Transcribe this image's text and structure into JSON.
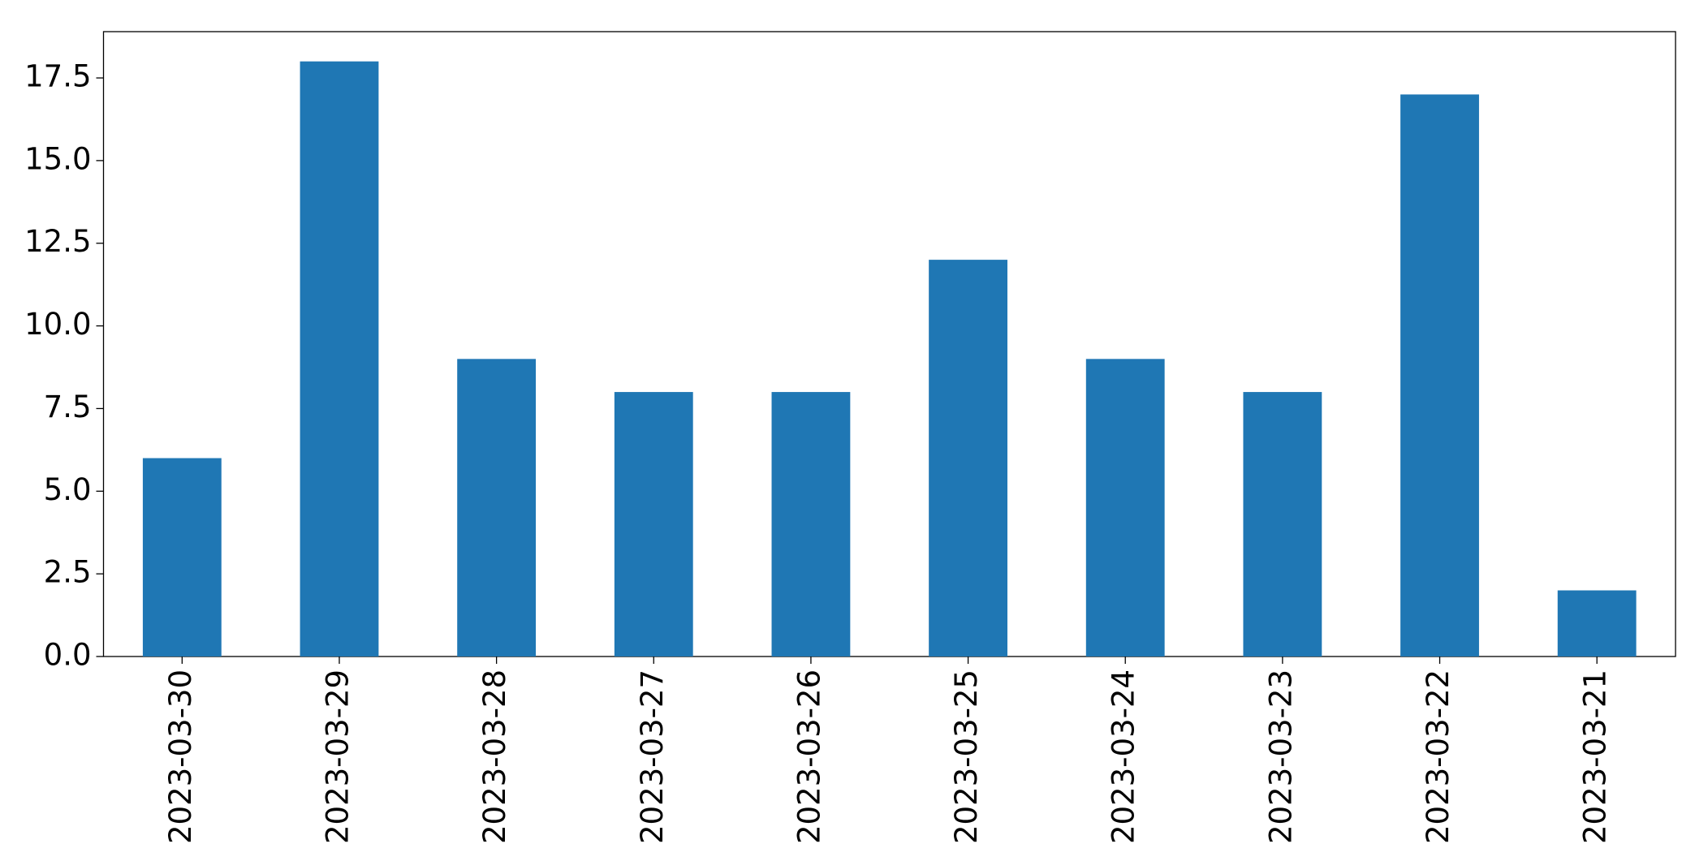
{
  "chart_data": {
    "type": "bar",
    "categories": [
      "2023-03-30",
      "2023-03-29",
      "2023-03-28",
      "2023-03-27",
      "2023-03-26",
      "2023-03-25",
      "2023-03-24",
      "2023-03-23",
      "2023-03-22",
      "2023-03-21"
    ],
    "values": [
      6,
      18,
      9,
      8,
      8,
      12,
      9,
      8,
      17,
      2
    ],
    "color": "#1f77b4",
    "ylim": [
      0,
      18.9
    ],
    "yticks": [
      {
        "value": 0,
        "label": "0.0"
      },
      2.5,
      {
        "value": 5,
        "label": "5.0"
      },
      7.5,
      {
        "value": 10,
        "label": "10.0"
      },
      12.5,
      {
        "value": 15,
        "label": "15.0"
      },
      17.5
    ],
    "grid": false
  }
}
